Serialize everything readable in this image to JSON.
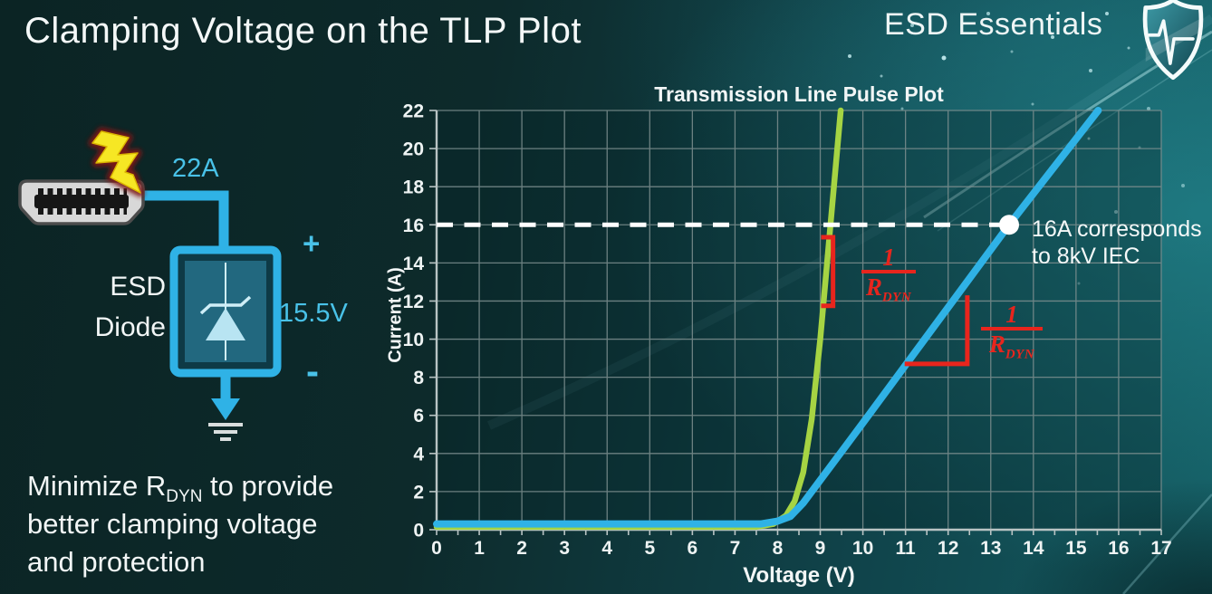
{
  "header": {
    "title": "Clamping Voltage on the TLP Plot",
    "brand": "ESD Essentials"
  },
  "colors": {
    "accent_cyan": "#49c2e8",
    "curve_blue": "#2fb2e6",
    "curve_green": "#a6d443",
    "annotation_red": "#e8251d",
    "background_teal": "#10434a",
    "grid_gray": "#7d8f8f",
    "white": "#ffffff"
  },
  "circuit": {
    "surge_current_label": "22A",
    "device_label_line1": "ESD",
    "device_label_line2": "Diode",
    "plus_label": "+",
    "voltage_label": "15.5V",
    "minus_label": "-"
  },
  "footer_note": {
    "part1": "Minimize R",
    "subscript": "DYN",
    "part2": " to provide better clamping voltage and protection"
  },
  "chart_data": {
    "type": "line",
    "title": "Transmission Line Pulse Plot",
    "xlabel": "Voltage (V)",
    "ylabel": "Current (A)",
    "xlim": [
      0,
      17
    ],
    "ylim": [
      0,
      22
    ],
    "xticks": [
      0,
      1,
      2,
      3,
      4,
      5,
      6,
      7,
      8,
      9,
      10,
      11,
      12,
      13,
      14,
      15,
      16,
      17
    ],
    "yticks": [
      0,
      2,
      4,
      6,
      8,
      10,
      12,
      14,
      16,
      18,
      20,
      22
    ],
    "grid": {
      "x_step": 1,
      "y_step": 2,
      "color": "#7d8f8f"
    },
    "series": [
      {
        "id": "low-rdyn-diode-green",
        "color": "#a6d443",
        "points": [
          [
            0,
            0.15
          ],
          [
            7.5,
            0.15
          ],
          [
            7.9,
            0.3
          ],
          [
            8.2,
            0.75
          ],
          [
            8.4,
            1.5
          ],
          [
            8.6,
            3.0
          ],
          [
            8.8,
            5.8
          ],
          [
            9.0,
            10.0
          ],
          [
            9.24,
            16.0
          ],
          [
            9.48,
            22.0
          ]
        ]
      },
      {
        "id": "high-rdyn-diode-blue",
        "color": "#2fb2e6",
        "points": [
          [
            0,
            0.3
          ],
          [
            7.6,
            0.3
          ],
          [
            8.0,
            0.45
          ],
          [
            8.3,
            0.7
          ],
          [
            8.6,
            1.4
          ],
          [
            9.0,
            2.6
          ],
          [
            9.5,
            4.1
          ],
          [
            10.0,
            5.6
          ],
          [
            13.43,
            16.0
          ],
          [
            15.52,
            22.0
          ]
        ]
      }
    ],
    "reference_line": {
      "y": 16,
      "style": "dashed",
      "color": "#ffffff"
    },
    "marker": {
      "x": 13.43,
      "y": 16,
      "color": "#ffffff"
    },
    "marker_note": {
      "line1": "16A corresponds",
      "line2": "to 8kV IEC"
    },
    "rdyn_label": {
      "numerator": "1",
      "den_base": "R",
      "den_sub": "DYN"
    },
    "slope_indicators": {
      "color": "#e8251d",
      "green_bracket": {
        "x": 9.3,
        "y_top": 15.35,
        "y_bottom": 11.75,
        "tick_dx": -0.28
      },
      "blue_angle": {
        "x_left": 10.98,
        "y": 8.7,
        "x_corner": 12.45,
        "y_top": 12.3
      }
    }
  }
}
